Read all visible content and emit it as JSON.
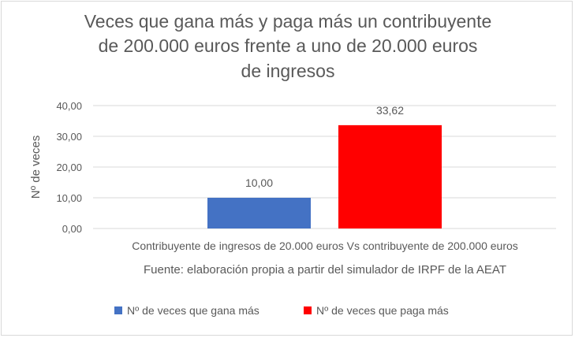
{
  "chart_data": {
    "type": "bar",
    "title_lines": [
      "Veces que gana más y paga más un contribuyente",
      "de 200.000 euros frente a uno de 20.000 euros",
      "de ingresos"
    ],
    "categories": [
      "Contribuyente de ingresos de 20.000 euros Vs contribuyente de 200.000 euros"
    ],
    "xlabel": "Fuente: elaboración propia a partir del simulador de IRPF de la AEAT",
    "ylabel": "Nº de veces",
    "ylim": [
      0,
      40
    ],
    "yticks": [
      "0,00",
      "10,00",
      "20,00",
      "30,00",
      "40,00"
    ],
    "grid": true,
    "legend_position": "bottom",
    "series": [
      {
        "name": "Nº de veces que gana más",
        "values": [
          10.0
        ],
        "label": "10,00",
        "color": "#4472c4"
      },
      {
        "name": "Nº de veces que paga más",
        "values": [
          33.62
        ],
        "label": "33,62",
        "color": "#ff0000"
      }
    ]
  }
}
